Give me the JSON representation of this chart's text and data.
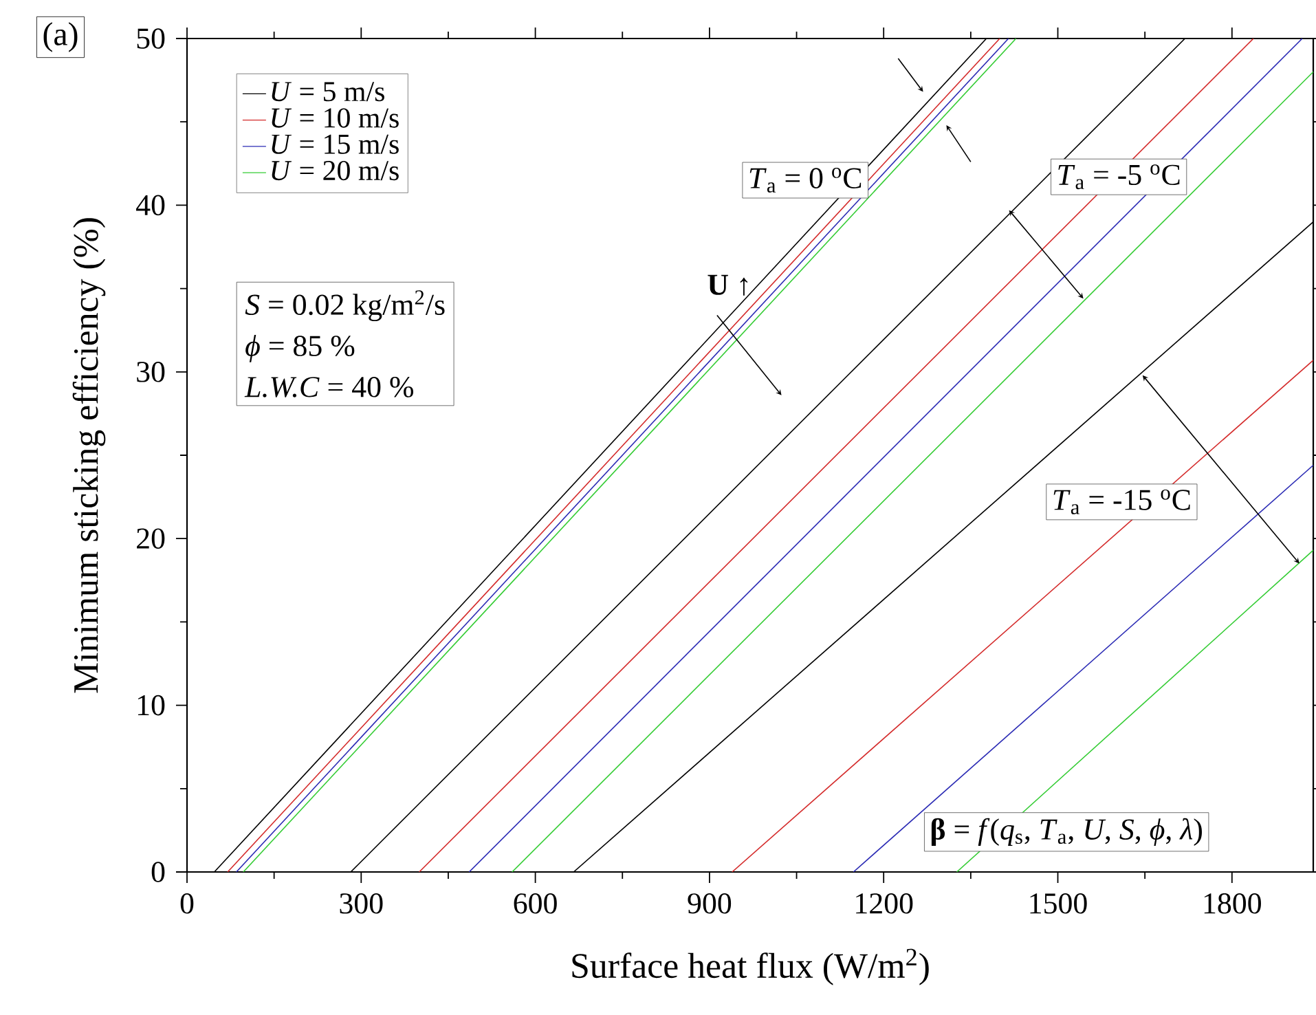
{
  "chart_data": {
    "type": "line",
    "xlabel": "Surface heat flux (W/m$^{2}$)",
    "ylabel": "Minimum sticking efficiency (%)",
    "xlim": [
      0,
      1940
    ],
    "ylim": [
      0,
      50
    ],
    "xticks": [
      0,
      300,
      600,
      900,
      1200,
      1500,
      1800
    ],
    "yticks": [
      0,
      10,
      20,
      30,
      40,
      50
    ],
    "legend": "top left",
    "grid": false,
    "marker": "none",
    "line_style": "solid",
    "series": [
      {
        "name": "*U* =   5 m/s",
        "color": "#000000",
        "x": [
          47,
          1377
        ],
        "values": [
          0,
          50
        ]
      },
      {
        "name": "*U* = 10 m/s",
        "color": "#d42a2a",
        "x": [
          70,
          1400
        ],
        "values": [
          0,
          50
        ]
      },
      {
        "name": "*U* = 15 m/s",
        "color": "#2a2ab4",
        "x": [
          85,
          1415
        ],
        "values": [
          0,
          50
        ]
      },
      {
        "name": "*U* = 20 m/s",
        "color": "#33cc33",
        "x": [
          97,
          1428
        ],
        "values": [
          0,
          50
        ]
      },
      {
        "color": "#000000",
        "x": [
          282,
          1719
        ],
        "values": [
          0,
          50
        ]
      },
      {
        "color": "#d42a2a",
        "x": [
          400,
          1837
        ],
        "values": [
          0,
          50
        ]
      },
      {
        "color": "#2a2ab4",
        "x": [
          486,
          1921
        ],
        "values": [
          0,
          50
        ]
      },
      {
        "color": "#33cc33",
        "x": [
          560,
          1940
        ],
        "values": [
          0,
          48
        ]
      },
      {
        "color": "#000000",
        "x": [
          666,
          1940
        ],
        "values": [
          0,
          39
        ]
      },
      {
        "color": "#d42a2a",
        "x": [
          939,
          1940
        ],
        "values": [
          0,
          30.7
        ]
      },
      {
        "color": "#2a2ab4",
        "x": [
          1148,
          1940
        ],
        "values": [
          0,
          24.4
        ]
      },
      {
        "color": "#33cc33",
        "x": [
          1326,
          1940
        ],
        "values": [
          0,
          19.3
        ]
      }
    ],
    "annotations": [
      "(a)",
      "*T*$_{a}$ = 0 $^{o}$C",
      "*T*$_{a}$ = -5 $^{o}$C",
      "*T*$_{a}$ = -15 $^{o}$C",
      "**U** ↑",
      "*S* = 0.02 kg/m$^{2}$/s",
      "*ϕ* = 85 %",
      "*L.W.C* = 40 %",
      "**β** = *f*(*q*$_{s}$, *T*$_{a}$, *U*, *S*, *ϕ*, *λ*)"
    ]
  }
}
